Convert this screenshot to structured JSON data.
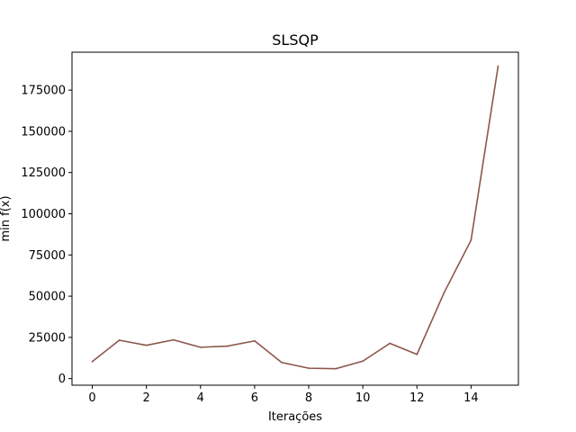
{
  "chart_data": {
    "type": "line",
    "title": "SLSQP",
    "xlabel": "Iterações",
    "ylabel": "min f(x)",
    "x": [
      0,
      1,
      2,
      3,
      4,
      5,
      6,
      7,
      8,
      9,
      10,
      11,
      12,
      13,
      14,
      15
    ],
    "series": [
      {
        "values": [
          10300,
          23300,
          20200,
          23500,
          19000,
          19700,
          22900,
          9800,
          6300,
          6000,
          10600,
          21400,
          14700,
          52000,
          84000,
          189500
        ],
        "color": "#8c564b"
      }
    ],
    "xlim": [
      -0.75,
      15.75
    ],
    "ylim": [
      -4000,
      198000
    ],
    "xticks": [
      0,
      2,
      4,
      6,
      8,
      10,
      12,
      14
    ],
    "yticks": [
      0,
      25000,
      50000,
      75000,
      100000,
      125000,
      150000,
      175000
    ],
    "ytick_labels": [
      "0",
      "25000",
      "50000",
      "75000",
      "100000",
      "125000",
      "150000",
      "175000"
    ],
    "grid": false
  }
}
